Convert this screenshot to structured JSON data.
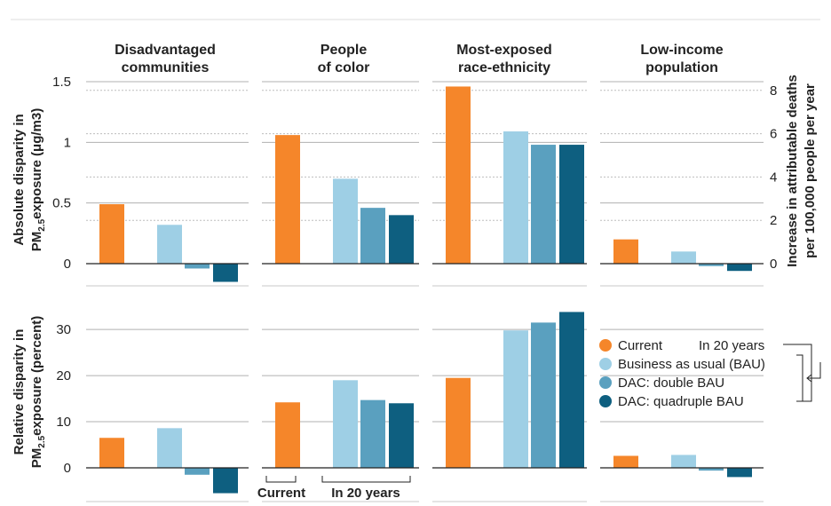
{
  "chart_data": {
    "type": "bar",
    "panels": [
      "Disadvantaged communities",
      "People of color",
      "Most-exposed race-ethnicity",
      "Low-income population"
    ],
    "panel_titles": [
      [
        "Disadvantaged",
        "communities"
      ],
      [
        "People",
        "of color"
      ],
      [
        "Most-exposed",
        "race-ethnicity"
      ],
      [
        "Low-income",
        "population"
      ]
    ],
    "series": [
      {
        "name": "Current",
        "color": "#f5862a"
      },
      {
        "name": "Business as usual (BAU)",
        "color": "#9ecfe5"
      },
      {
        "name": "DAC: double BAU",
        "color": "#5aa0bf"
      },
      {
        "name": "DAC: quadruple BAU",
        "color": "#0e5f80"
      }
    ],
    "rows": [
      {
        "ylabel": [
          "Absolute disparity in",
          "PM2.5exposure (μg/m3)"
        ],
        "ylim": [
          -0.17,
          1.5
        ],
        "yticks": [
          0,
          0.5,
          1,
          1.5
        ],
        "ytick_labels": [
          "0",
          "0.5",
          "1",
          "1.5"
        ],
        "values": [
          [
            0.49,
            0.32,
            -0.04,
            -0.15
          ],
          [
            1.06,
            0.7,
            0.46,
            0.4
          ],
          [
            1.46,
            1.09,
            0.98,
            0.98
          ],
          [
            0.2,
            0.1,
            -0.02,
            -0.06
          ]
        ],
        "y2label": [
          "Increase in attributable deaths",
          "per 100,000 people per year"
        ],
        "y2ticks": [
          0,
          2,
          4,
          6,
          8
        ],
        "y2_per_y1": 5.6
      },
      {
        "ylabel": [
          "Relative disparity in",
          "PM2.5exposure (percent)"
        ],
        "ylim": [
          -6,
          36
        ],
        "yticks": [
          0,
          10,
          20,
          30
        ],
        "ytick_labels": [
          "0",
          "10",
          "20",
          "30"
        ],
        "values": [
          [
            6.5,
            8.6,
            -1.5,
            -5.5
          ],
          [
            14.2,
            19.0,
            14.7,
            14.0
          ],
          [
            19.5,
            29.8,
            31.5,
            33.8
          ],
          [
            2.6,
            2.8,
            -0.6,
            -2.0
          ]
        ]
      }
    ],
    "legend": {
      "header": "In 20 years",
      "placement": "right"
    },
    "brackets": {
      "current": "Current",
      "future": "In 20 years"
    }
  }
}
